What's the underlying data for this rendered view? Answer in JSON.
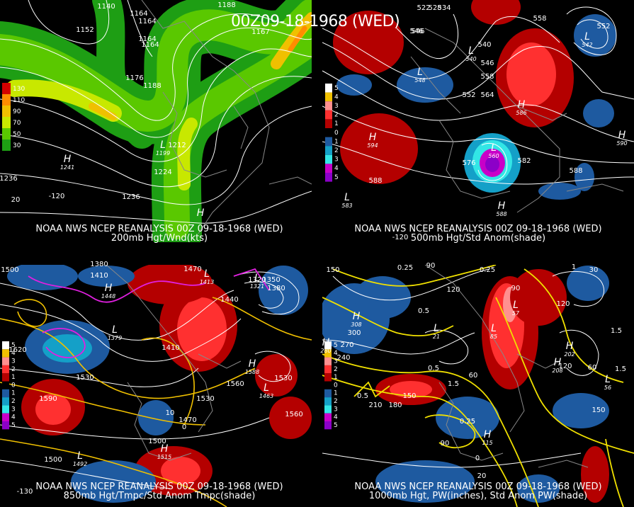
{
  "title": "00Z09-18-1968 (WED)",
  "panels": [
    {
      "caption1": "NOAA NWS NCEP REANALYSIS 00Z 09-18-1968 (WED)",
      "caption2": "200mb Hgt/Wnd(kts)",
      "legend": {
        "labels": [
          "130",
          "110",
          "90",
          "70",
          "50",
          "30"
        ],
        "colors": [
          "#d40000",
          "#ff8c00",
          "#f0c000",
          "#c8e800",
          "#5ac800",
          "#1e9e14"
        ]
      },
      "contour_labels": [
        "1140",
        "1164",
        "1188",
        "1152",
        "1164",
        "1176",
        "1188",
        "1212",
        "1224",
        "1236",
        "1236",
        "20",
        "-120",
        "1167",
        "1164",
        "1164"
      ],
      "highs_lows": [
        {
          "t": "L",
          "v": "1199"
        },
        {
          "t": "H",
          "v": "1241"
        },
        {
          "t": "H",
          "v": ""
        }
      ]
    },
    {
      "caption1": "NOAA NWS NCEP REANALYSIS 00Z 09-18-1968 (WED)",
      "caption2": "500mb Hgt/Std Anom(shade)",
      "legend": {
        "labels": [
          "5",
          "4",
          "3",
          "2",
          "1",
          "0",
          "1",
          "2",
          "3",
          "4",
          "5"
        ],
        "colors": [
          "#ffffff",
          "#f0c000",
          "#ff9090",
          "#ff3030",
          "#b40000",
          "#000000",
          "#1e5aa0",
          "#14a0c8",
          "#32e6e6",
          "#c800c8",
          "#8c00c8"
        ]
      },
      "contour_labels": [
        "522",
        "528",
        "534",
        "558",
        "546",
        "540",
        "546",
        "552",
        "552",
        "558",
        "564",
        "576",
        "582",
        "588",
        "588",
        "546",
        "-120"
      ],
      "highs_lows": [
        {
          "t": "H",
          "v": "594"
        },
        {
          "t": "H",
          "v": "586"
        },
        {
          "t": "L",
          "v": "548"
        },
        {
          "t": "L",
          "v": "540"
        },
        {
          "t": "L",
          "v": "560"
        },
        {
          "t": "L",
          "v": "542"
        },
        {
          "t": "L",
          "v": "583"
        },
        {
          "t": "H",
          "v": "590"
        },
        {
          "t": "H",
          "v": "588"
        }
      ]
    },
    {
      "caption1": "NOAA NWS NCEP REANALYSIS 00Z 09-18-1968 (WED)",
      "caption2": "850mb Hgt/Tmpc/Std Anom Tmpc(shade)",
      "legend": {
        "labels": [
          "5",
          "4",
          "3",
          "2",
          "1",
          "0",
          "1",
          "2",
          "3",
          "4",
          "5"
        ],
        "colors": [
          "#ffffff",
          "#f0c000",
          "#ff9090",
          "#ff3030",
          "#b40000",
          "#000000",
          "#1e5aa0",
          "#14a0c8",
          "#32e6e6",
          "#c800c8",
          "#8c00c8"
        ]
      },
      "contour_labels": [
        "1500",
        "1380",
        "1410",
        "1470",
        "1320",
        "1350",
        "1380",
        "1440",
        "1410",
        "1530",
        "1560",
        "1590",
        "1470",
        "1500",
        "1530",
        "1560",
        "1500",
        "1620",
        "1530",
        "-130",
        "10",
        "0"
      ],
      "highs_lows": [
        {
          "t": "L",
          "v": "1379"
        },
        {
          "t": "H",
          "v": "1448"
        },
        {
          "t": "H",
          "v": "1588"
        },
        {
          "t": "L",
          "v": "1463"
        },
        {
          "t": "H",
          "v": "1515"
        },
        {
          "t": "L",
          "v": "1492"
        },
        {
          "t": "L",
          "v": "1321"
        },
        {
          "t": "L",
          "v": "1413"
        }
      ]
    },
    {
      "caption1": "NOAA NWS NCEP REANALYSIS 00Z 09-18-1968 (WED)",
      "caption2": "1000mb Hgt, PW(inches), Std Anom PW(shade)",
      "legend": {
        "labels": [
          "5",
          "4",
          "3",
          "2",
          "1",
          "0",
          "1",
          "2",
          "3",
          "4",
          "5"
        ],
        "colors": [
          "#ffffff",
          "#f0c000",
          "#ff9090",
          "#ff3030",
          "#b40000",
          "#000000",
          "#1e5aa0",
          "#14a0c8",
          "#32e6e6",
          "#c800c8",
          "#8c00c8"
        ]
      },
      "contour_labels": [
        "150",
        "90",
        "0.25",
        "120",
        "0.25",
        "30",
        "1",
        "120",
        "90",
        "300",
        "0.5",
        "270",
        "240",
        "1.5",
        "1.5",
        "210",
        "180",
        "150",
        "60",
        "0.5",
        "0.25",
        "90",
        "150",
        "120",
        "60",
        "1.5",
        "0.5",
        "0",
        "20"
      ],
      "highs_lows": [
        {
          "t": "H",
          "v": "308"
        },
        {
          "t": "L",
          "v": "21"
        },
        {
          "t": "L",
          "v": "85"
        },
        {
          "t": "H",
          "v": "202"
        },
        {
          "t": "H",
          "v": "208"
        },
        {
          "t": "L",
          "v": "56"
        },
        {
          "t": "H",
          "v": "115"
        },
        {
          "t": "L",
          "v": "57"
        },
        {
          "t": "H",
          "v": "280"
        }
      ]
    }
  ]
}
